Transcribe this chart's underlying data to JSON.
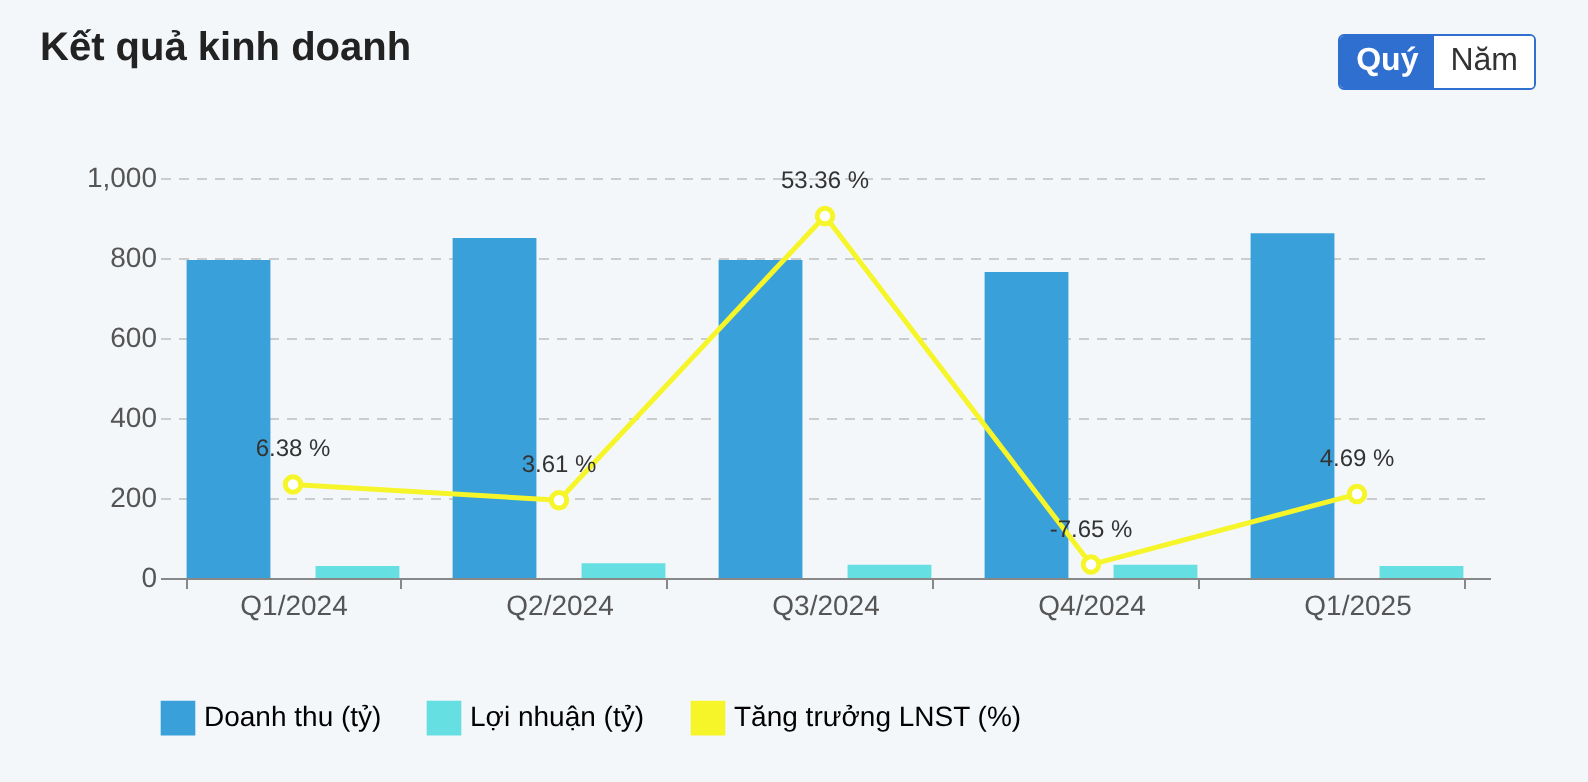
{
  "chart_data": {
    "type": "bar",
    "title": "Kết quả kinh doanh",
    "categories": [
      "Q1/2024",
      "Q2/2024",
      "Q3/2024",
      "Q4/2024",
      "Q1/2025"
    ],
    "series": [
      {
        "name": "Doanh thu (tỷ)",
        "color": "#3aa0da",
        "values": [
          795,
          850,
          795,
          765,
          862
        ]
      },
      {
        "name": "Lợi nhuận (tỷ)",
        "color": "#66dfe2",
        "values": [
          30,
          37,
          33,
          33,
          30
        ]
      },
      {
        "name": "Tăng trưởng LNST (%)",
        "type": "line",
        "axis": "y2",
        "color": "#f5f52a",
        "values": [
          6.38,
          3.61,
          53.36,
          -7.65,
          4.69
        ],
        "value_labels": [
          "6.38 %",
          "3.61 %",
          "53.36 %",
          "-7.65 %",
          "4.69 %"
        ]
      }
    ],
    "ylim": [
      0,
      1000
    ],
    "yticks": [
      0,
      200,
      400,
      600,
      800,
      {
        "value": 1000,
        "label": "1,000"
      }
    ],
    "y2lim": [
      -10,
      60
    ],
    "grid": "y",
    "legend": "bottom",
    "marker": "circle",
    "annotations": [
      "Quý",
      "Năm"
    ]
  }
}
